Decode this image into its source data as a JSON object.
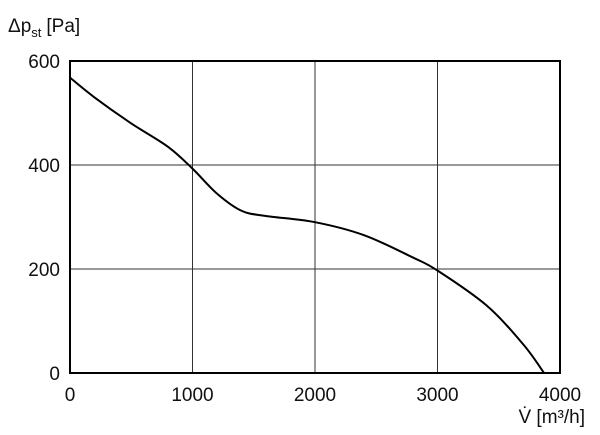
{
  "chart_data": {
    "type": "line",
    "y_label": {
      "symbol": "Δp",
      "subscript": "st",
      "unit": "[Pa]"
    },
    "x_label": "V̇ [m³/h]",
    "x": [
      0,
      200,
      500,
      800,
      1000,
      1200,
      1400,
      1600,
      2000,
      2400,
      2800,
      3000,
      3400,
      3700,
      3870
    ],
    "series": [
      {
        "color": "#000000",
        "values": [
          568,
          530,
          480,
          435,
          393,
          345,
          312,
          302,
          290,
          265,
          222,
          197,
          130,
          55,
          0
        ]
      }
    ],
    "xlim": [
      0,
      4000
    ],
    "xticks": [
      0,
      1000,
      2000,
      3000,
      4000
    ],
    "ylim": [
      0,
      600
    ],
    "yticks": [
      0,
      200,
      400,
      600
    ],
    "grid": true
  }
}
